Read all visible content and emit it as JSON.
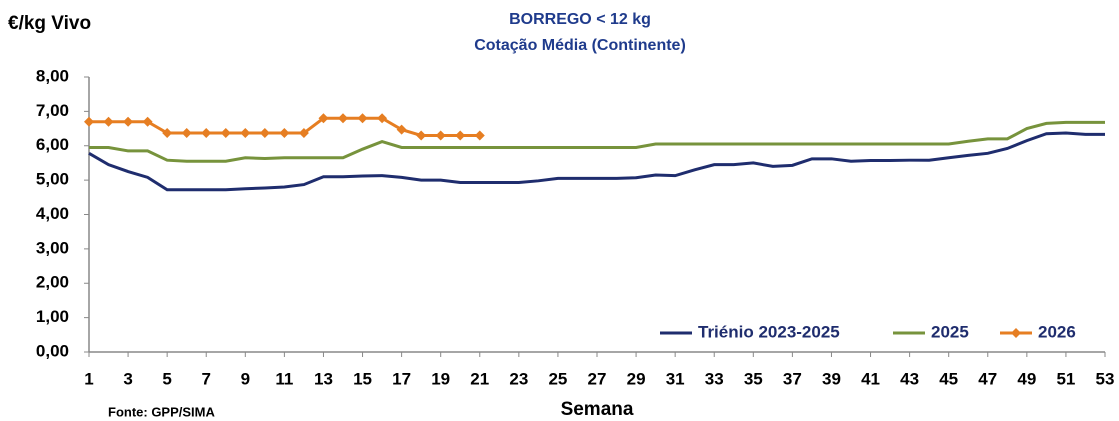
{
  "chart_data": {
    "type": "line",
    "title": "BORREGO < 12 kg",
    "subtitle": "Cotação Média (Continente)",
    "y_label": "€/kg Vivo",
    "x_label": "Semana",
    "source": "Fonte: GPP/SIMA",
    "x": [
      1,
      2,
      3,
      4,
      5,
      6,
      7,
      8,
      9,
      10,
      11,
      12,
      13,
      14,
      15,
      16,
      17,
      18,
      19,
      20,
      21,
      22,
      23,
      24,
      25,
      26,
      27,
      28,
      29,
      30,
      31,
      32,
      33,
      34,
      35,
      36,
      37,
      38,
      39,
      40,
      41,
      42,
      43,
      44,
      45,
      46,
      47,
      48,
      49,
      50,
      51,
      52,
      53
    ],
    "xlim": [
      1,
      53
    ],
    "xticks": [
      1,
      3,
      5,
      7,
      9,
      11,
      13,
      15,
      17,
      19,
      21,
      23,
      25,
      27,
      29,
      31,
      33,
      35,
      37,
      39,
      41,
      43,
      45,
      47,
      49,
      51,
      53
    ],
    "ylim": [
      0,
      8
    ],
    "yticks": [
      {
        "value": 0,
        "label": "0,00"
      },
      {
        "value": 1,
        "label": "1,00"
      },
      {
        "value": 2,
        "label": "2,00"
      },
      {
        "value": 3,
        "label": "3,00"
      },
      {
        "value": 4,
        "label": "4,00"
      },
      {
        "value": 5,
        "label": "5,00"
      },
      {
        "value": 6,
        "label": "6,00"
      },
      {
        "value": 7,
        "label": "7,00"
      },
      {
        "value": 8,
        "label": "8,00"
      }
    ],
    "legend": "bottom-right",
    "series": [
      {
        "name": "Triénio 2023-2025",
        "color": "#1f2d6e",
        "markers": false,
        "values": [
          5.78,
          5.45,
          5.25,
          5.08,
          4.72,
          4.72,
          4.72,
          4.72,
          4.75,
          4.77,
          4.8,
          4.87,
          5.1,
          5.1,
          5.12,
          5.13,
          5.08,
          5.0,
          5.0,
          4.93,
          4.93,
          4.93,
          4.93,
          4.98,
          5.05,
          5.05,
          5.05,
          5.05,
          5.07,
          5.15,
          5.13,
          5.3,
          5.45,
          5.45,
          5.5,
          5.4,
          5.43,
          5.62,
          5.62,
          5.55,
          5.57,
          5.57,
          5.58,
          5.58,
          5.65,
          5.72,
          5.78,
          5.92,
          6.15,
          6.35,
          6.37,
          6.33,
          6.33
        ]
      },
      {
        "name": "2025",
        "color": "#77933c",
        "markers": false,
        "values": [
          5.95,
          5.95,
          5.85,
          5.85,
          5.58,
          5.55,
          5.55,
          5.55,
          5.65,
          5.63,
          5.65,
          5.65,
          5.65,
          5.65,
          5.9,
          6.12,
          5.95,
          5.95,
          5.95,
          5.95,
          5.95,
          5.95,
          5.95,
          5.95,
          5.95,
          5.95,
          5.95,
          5.95,
          5.95,
          6.05,
          6.05,
          6.05,
          6.05,
          6.05,
          6.05,
          6.05,
          6.05,
          6.05,
          6.05,
          6.05,
          6.05,
          6.05,
          6.05,
          6.05,
          6.05,
          6.13,
          6.2,
          6.2,
          6.5,
          6.65,
          6.68,
          6.68,
          6.68
        ]
      },
      {
        "name": "2026",
        "color": "#e67e22",
        "markers": true,
        "values": [
          6.7,
          6.7,
          6.7,
          6.7,
          6.37,
          6.37,
          6.37,
          6.37,
          6.37,
          6.37,
          6.37,
          6.37,
          6.8,
          6.8,
          6.8,
          6.8,
          6.47,
          6.3,
          6.3,
          6.3,
          6.3,
          null,
          null,
          null,
          null,
          null,
          null,
          null,
          null,
          null,
          null,
          null,
          null,
          null,
          null,
          null,
          null,
          null,
          null,
          null,
          null,
          null,
          null,
          null,
          null,
          null,
          null,
          null,
          null,
          null,
          null,
          null,
          null
        ]
      }
    ]
  }
}
